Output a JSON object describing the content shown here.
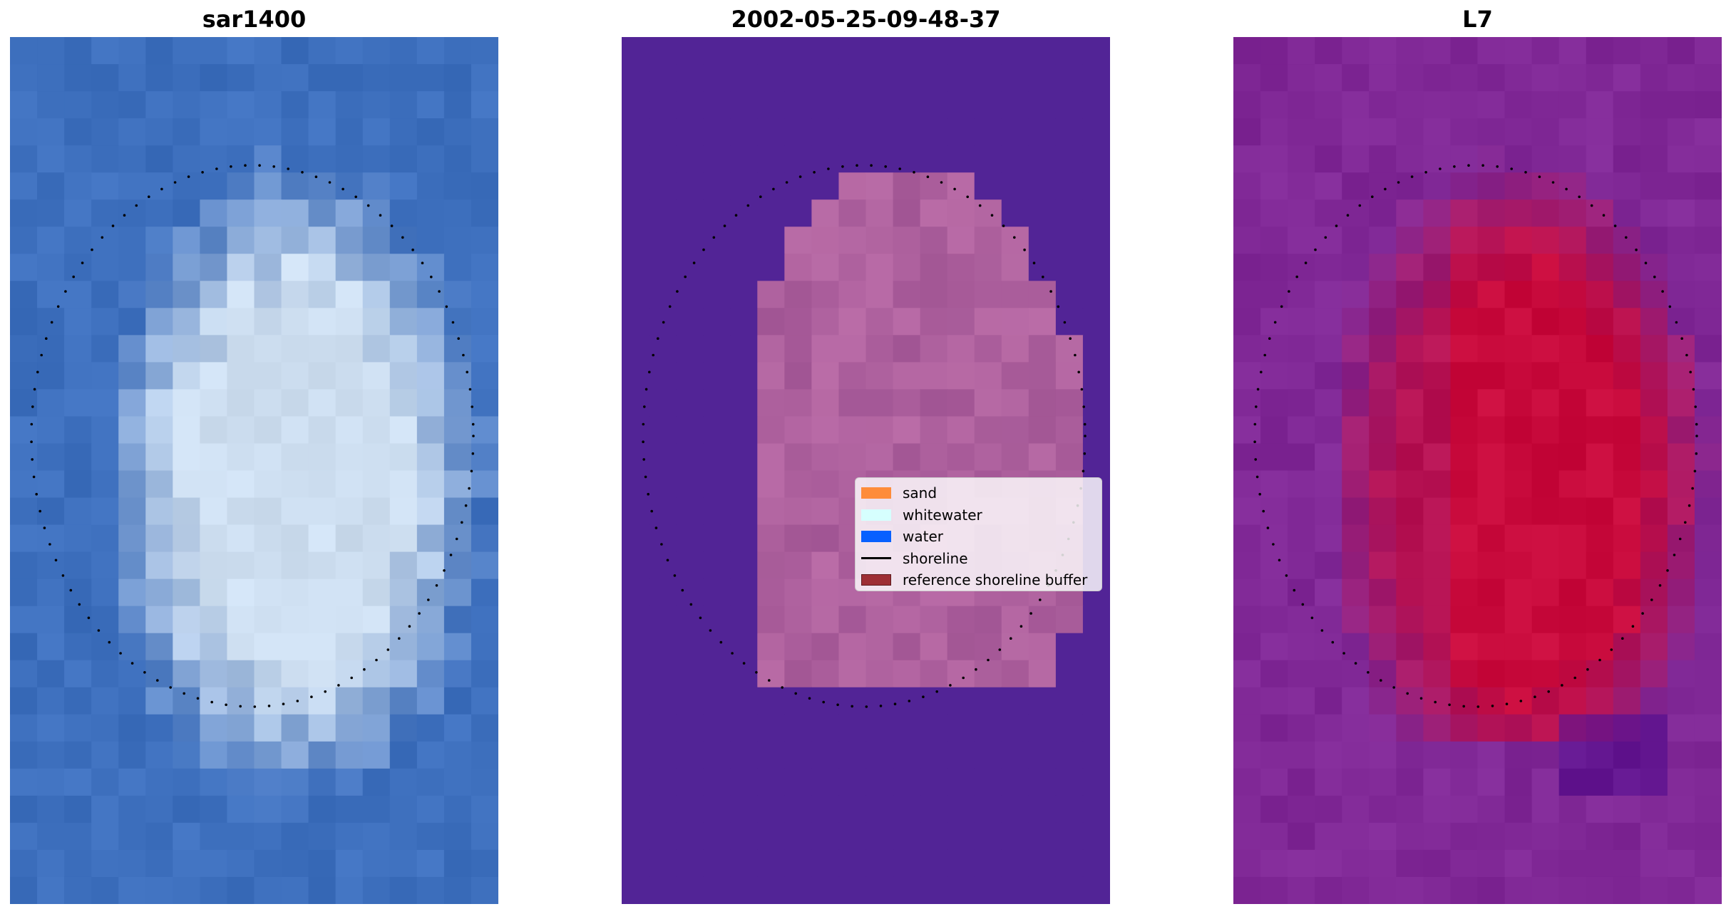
{
  "panels": [
    {
      "title": "sar1400",
      "image": "sar1400"
    },
    {
      "title": "2002-05-25-09-48-37",
      "image": "classification"
    },
    {
      "title": "L7",
      "image": "L7"
    }
  ],
  "legend": {
    "items": [
      {
        "label": "sand",
        "color": "#fe8c3a",
        "kind": "patch"
      },
      {
        "label": "whitewater",
        "color": "#d6fffe",
        "kind": "patch"
      },
      {
        "label": "water",
        "color": "#0760ff",
        "kind": "patch"
      },
      {
        "label": "shoreline",
        "color": "#000000",
        "kind": "line"
      },
      {
        "label": "reference shoreline buffer",
        "color": "#9e2f35",
        "kind": "patch"
      }
    ]
  }
}
